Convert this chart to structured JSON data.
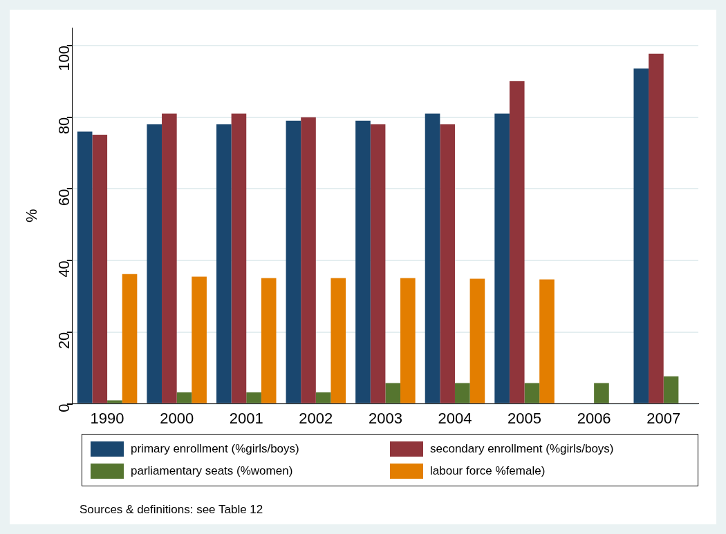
{
  "chart_data": {
    "type": "bar",
    "ylabel": "%",
    "categories": [
      "1990",
      "2000",
      "2001",
      "2002",
      "2003",
      "2004",
      "2005",
      "2006",
      "2007"
    ],
    "series": [
      {
        "name": "primary enrollment (%girls/boys)",
        "color": "#1a476f",
        "values": [
          76,
          78,
          78,
          79,
          79,
          81,
          81,
          null,
          93.6
        ]
      },
      {
        "name": "secondary enrollment (%girls/boys)",
        "color": "#90353b",
        "values": [
          75.1,
          81,
          81,
          80,
          78,
          78,
          90.1,
          null,
          97.7
        ]
      },
      {
        "name": "parliamentary seats (%women)",
        "color": "#55752f",
        "values": [
          1,
          3.2,
          3.2,
          3.2,
          5.8,
          5.8,
          5.8,
          5.8,
          7.7
        ]
      },
      {
        "name": "labour force %female)",
        "color": "#e37e00",
        "values": [
          36.2,
          35.5,
          35.1,
          35.1,
          35.1,
          34.9,
          34.7,
          null,
          null
        ]
      }
    ],
    "ylim": [
      0,
      105
    ],
    "yticks": [
      0,
      20,
      40,
      60,
      80,
      100
    ],
    "grid": "y",
    "legend": "bottom",
    "annotations": [
      "Sources & definitions: see Table 12"
    ]
  }
}
